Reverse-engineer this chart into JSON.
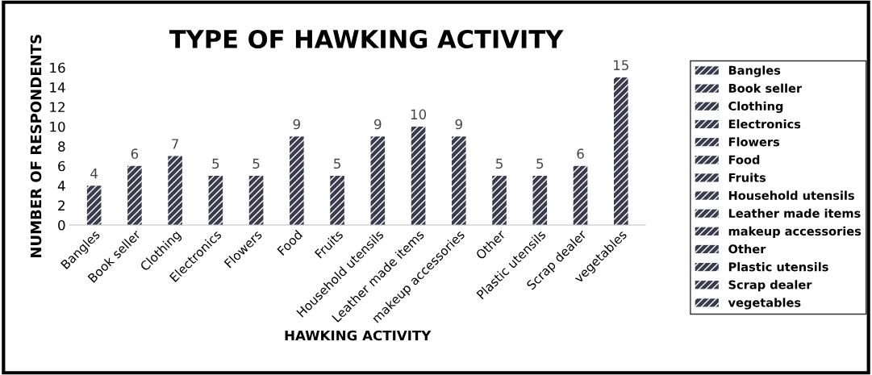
{
  "chart_data": {
    "type": "bar",
    "title": "TYPE OF HAWKING ACTIVITY",
    "xlabel": "HAWKING ACTIVITY",
    "ylabel": "NUMBER OF RESPONDENTS",
    "categories": [
      "Bangles",
      "Book seller",
      "Clothing",
      "Electronics",
      "Flowers",
      "Food",
      "Fruits",
      "Household utensils",
      "Leather made items",
      "makeup accessories",
      "Other",
      "Plastic utensils",
      "Scrap dealer",
      "vegetables"
    ],
    "series": [
      {
        "name": "Bangles",
        "color": "#3b3b4f",
        "values": [
          4,
          null,
          null,
          null,
          null,
          null,
          null,
          null,
          null,
          null,
          null,
          null,
          null,
          null
        ]
      },
      {
        "name": "Book seller",
        "color": "#3b3b4f",
        "values": [
          null,
          6,
          null,
          null,
          null,
          null,
          null,
          null,
          null,
          null,
          null,
          null,
          null,
          null
        ]
      },
      {
        "name": "Clothing",
        "color": "#3b3b4f",
        "values": [
          null,
          null,
          7,
          null,
          null,
          null,
          null,
          null,
          null,
          null,
          null,
          null,
          null,
          null
        ]
      },
      {
        "name": "Electronics",
        "color": "#3b3b4f",
        "values": [
          null,
          null,
          null,
          5,
          null,
          null,
          null,
          null,
          null,
          null,
          null,
          null,
          null,
          null
        ]
      },
      {
        "name": "Flowers",
        "color": "#3b3b4f",
        "values": [
          null,
          null,
          null,
          null,
          5,
          null,
          null,
          null,
          null,
          null,
          null,
          null,
          null,
          null
        ]
      },
      {
        "name": "Food",
        "color": "#3b3b4f",
        "values": [
          null,
          null,
          null,
          null,
          null,
          9,
          null,
          null,
          null,
          null,
          null,
          null,
          null,
          null
        ]
      },
      {
        "name": "Fruits",
        "color": "#3b3b4f",
        "values": [
          null,
          null,
          null,
          null,
          null,
          null,
          5,
          null,
          null,
          null,
          null,
          null,
          null,
          null
        ]
      },
      {
        "name": "Household utensils",
        "color": "#3b3b4f",
        "values": [
          null,
          null,
          null,
          null,
          null,
          null,
          null,
          9,
          null,
          null,
          null,
          null,
          null,
          null
        ]
      },
      {
        "name": "Leather made items",
        "color": "#3b3b4f",
        "values": [
          null,
          null,
          null,
          null,
          null,
          null,
          null,
          null,
          10,
          null,
          null,
          null,
          null,
          null
        ]
      },
      {
        "name": "makeup accessories",
        "color": "#3b3b4f",
        "values": [
          null,
          null,
          null,
          null,
          null,
          null,
          null,
          null,
          null,
          9,
          null,
          null,
          null,
          null
        ]
      },
      {
        "name": "Other",
        "color": "#3b3b4f",
        "values": [
          null,
          null,
          null,
          null,
          null,
          null,
          null,
          null,
          null,
          null,
          5,
          null,
          null,
          null
        ]
      },
      {
        "name": "Plastic utensils",
        "color": "#3b3b4f",
        "values": [
          null,
          null,
          null,
          null,
          null,
          null,
          null,
          null,
          null,
          null,
          null,
          5,
          null,
          null
        ]
      },
      {
        "name": "Scrap dealer",
        "color": "#3b3b4f",
        "values": [
          null,
          null,
          null,
          null,
          null,
          null,
          null,
          null,
          null,
          null,
          null,
          null,
          6,
          null
        ]
      },
      {
        "name": "vegetables",
        "color": "#3b3b4f",
        "values": [
          null,
          null,
          null,
          null,
          null,
          null,
          null,
          null,
          null,
          null,
          null,
          null,
          null,
          15
        ]
      }
    ],
    "ylim": [
      0,
      16
    ],
    "yticks": [
      0,
      2,
      4,
      6,
      8,
      10,
      12,
      14,
      16
    ],
    "data_labels": true,
    "grid": false,
    "legend": "right"
  }
}
